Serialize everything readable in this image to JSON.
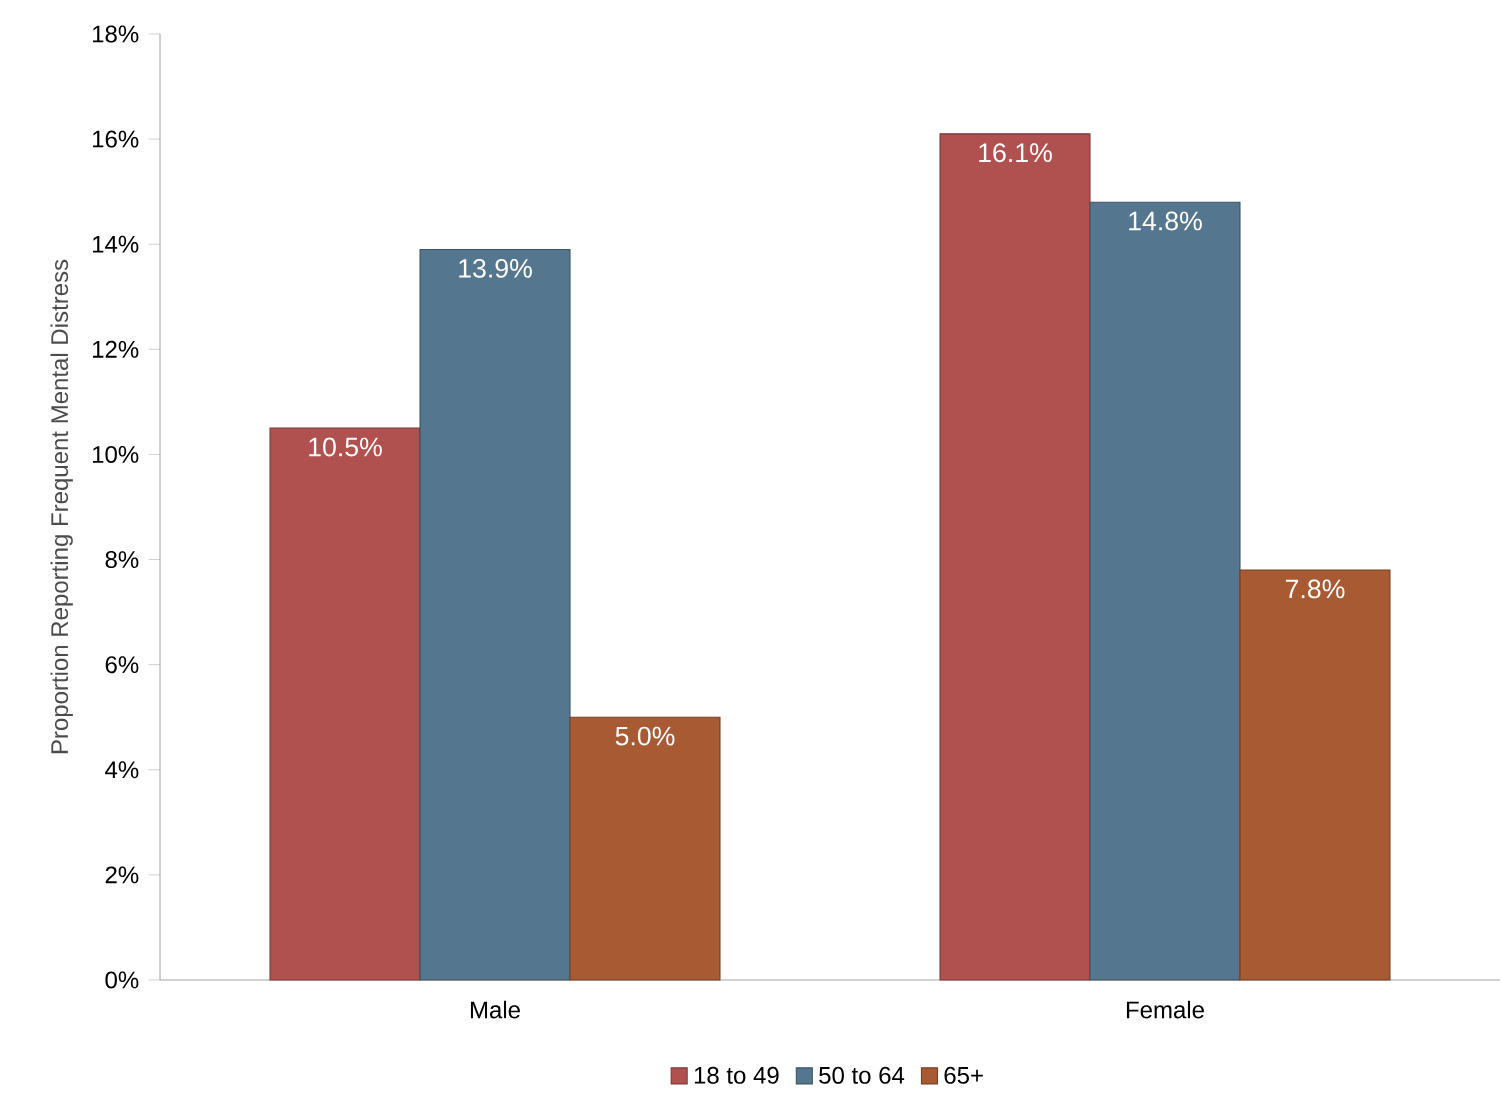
{
  "chart_data": {
    "type": "bar",
    "ylabel": "Proportion Reporting Frequent Mental Distress",
    "categories": [
      "Male",
      "Female"
    ],
    "series": [
      {
        "name": "18 to 49",
        "color": "#b0504f",
        "values": [
          10.5,
          16.1
        ],
        "value_labels": [
          "10.5%",
          "16.1%"
        ]
      },
      {
        "name": "50 to 64",
        "color": "#55768f",
        "values": [
          13.9,
          14.8
        ],
        "value_labels": [
          "13.9%",
          "14.8%"
        ]
      },
      {
        "name": "65+",
        "color": "#a85a32",
        "values": [
          5.0,
          7.8
        ],
        "value_labels": [
          "5.0%",
          "7.8%"
        ]
      }
    ],
    "ylim": [
      0,
      18
    ],
    "yticks": [
      {
        "value": 0,
        "label": "0%"
      },
      {
        "value": 2,
        "label": "2%"
      },
      {
        "value": 4,
        "label": "4%"
      },
      {
        "value": 6,
        "label": "6%"
      },
      {
        "value": 8,
        "label": "8%"
      },
      {
        "value": 10,
        "label": "10%"
      },
      {
        "value": 12,
        "label": "12%"
      },
      {
        "value": 14,
        "label": "14%"
      },
      {
        "value": 16,
        "label": "16%"
      },
      {
        "value": 18,
        "label": "18%"
      }
    ],
    "grid": false,
    "legend": "bottom"
  }
}
